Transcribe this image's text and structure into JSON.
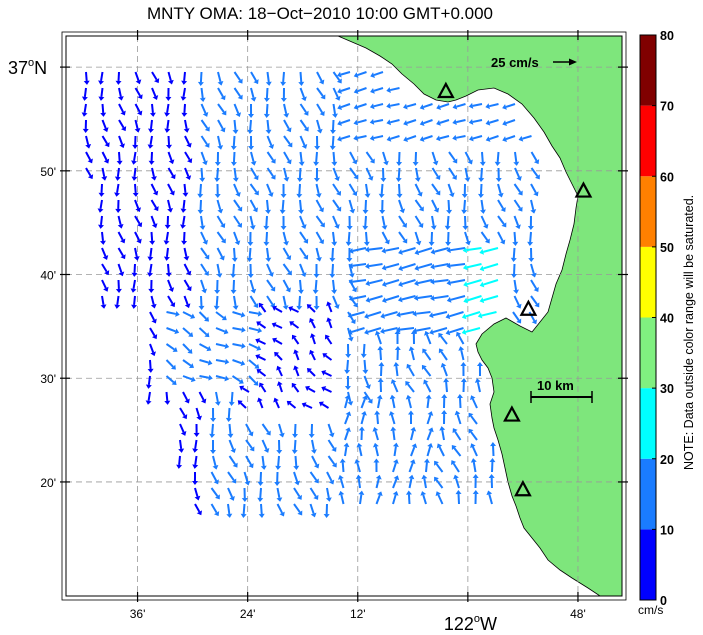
{
  "title": "MNTY OMA: 18−Oct−2010 10:00 GMT+0.000",
  "axes": {
    "lat_ticks": [
      {
        "lat": 37.0,
        "label": "37",
        "deg_suffix": "o",
        "hemi": "N",
        "major": true
      },
      {
        "lat": 36.8333,
        "label": "50'",
        "major": false
      },
      {
        "lat": 36.6667,
        "label": "40'",
        "major": false
      },
      {
        "lat": 36.5,
        "label": "30'",
        "major": false
      },
      {
        "lat": 36.3333,
        "label": "20'",
        "major": false
      }
    ],
    "lon_ticks": [
      {
        "lon": -122.6,
        "label": "36'",
        "major": false
      },
      {
        "lon": -122.4,
        "label": "24'",
        "major": false
      },
      {
        "lon": -122.2,
        "label": "12'",
        "major": false
      },
      {
        "lon": -122.0,
        "label": "122",
        "deg_suffix": "o",
        "hemi": "W",
        "major": true
      },
      {
        "lon": -121.8,
        "label": "48'",
        "major": false
      }
    ],
    "lat_range": [
      36.15,
      37.05
    ],
    "lon_range": [
      -122.73,
      -121.72
    ],
    "grid": "dashed"
  },
  "reference_vector": {
    "label": "25 cm/s",
    "speed": 25
  },
  "scale_bar": {
    "label": "10 km"
  },
  "colorbar": {
    "unit": "cm/s",
    "note": "NOTE: Data outside color range will be saturated.",
    "ticks": [
      "0",
      "10",
      "20",
      "30",
      "40",
      "50",
      "60",
      "70",
      "80"
    ],
    "bands": [
      {
        "from": 0,
        "to": 10,
        "color": "#0000ff"
      },
      {
        "from": 10,
        "to": 20,
        "color": "#1a7cff"
      },
      {
        "from": 20,
        "to": 30,
        "color": "#00ffff"
      },
      {
        "from": 30,
        "to": 40,
        "color": "#80f080"
      },
      {
        "from": 40,
        "to": 50,
        "color": "#ffff00"
      },
      {
        "from": 50,
        "to": 60,
        "color": "#ff8000"
      },
      {
        "from": 60,
        "to": 70,
        "color": "#ff0000"
      },
      {
        "from": 70,
        "to": 80,
        "color": "#800000"
      }
    ]
  },
  "colors": {
    "land": "#7ee67c",
    "coast": "#000000",
    "grid": "#999999"
  },
  "stations": [
    {
      "lat": 36.96,
      "lon": -122.04
    },
    {
      "lat": 36.8,
      "lon": -121.79
    },
    {
      "lat": 36.61,
      "lon": -121.89
    },
    {
      "lat": 36.44,
      "lon": -121.92
    },
    {
      "lat": 36.32,
      "lon": -121.9
    }
  ]
}
